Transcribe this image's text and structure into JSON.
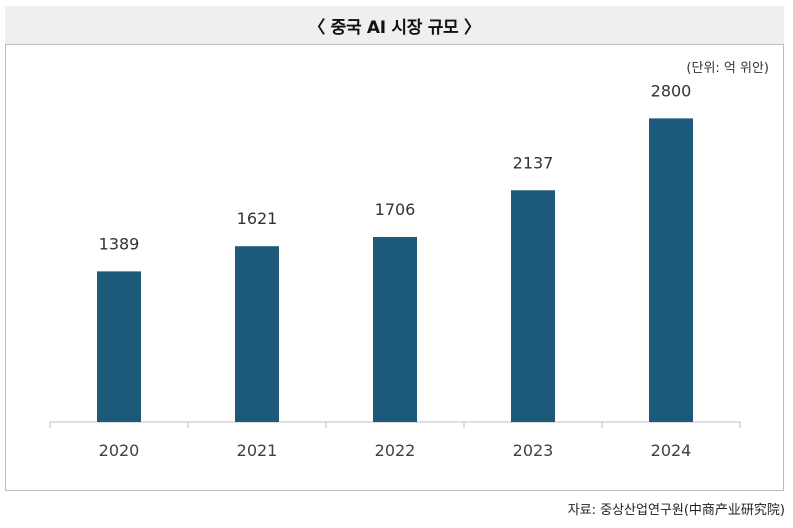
{
  "title": "〈 중국 AI 시장 규모 〉",
  "unit_label": "(단위: 억 위안)",
  "source": "자료: 중상산업연구원(中商产业研究院)",
  "colors": {
    "bar": "#1d5a7a",
    "axis": "#bfbfbf",
    "title_bg": "#efefef"
  },
  "chart_data": {
    "type": "bar",
    "categories": [
      "2020",
      "2021",
      "2022",
      "2023",
      "2024"
    ],
    "values": [
      1389,
      1621,
      1706,
      2137,
      2800
    ],
    "data_labels": [
      "1389",
      "1621",
      "1706",
      "2137",
      "2800"
    ],
    "title": "〈 중국 AI 시장 규모 〉",
    "ylabel": "(단위: 억 위안)",
    "ylim": [
      0,
      3200
    ],
    "grid": false,
    "legend": "none"
  }
}
